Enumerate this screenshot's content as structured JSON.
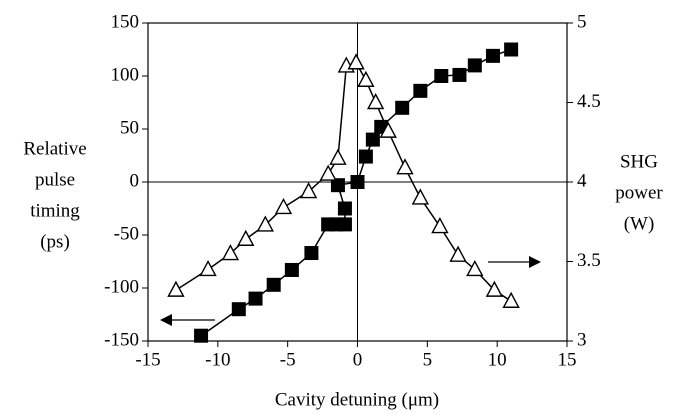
{
  "chart_data": {
    "type": "line",
    "x_label": "Cavity detuning (μm)",
    "y_label": [
      "Relative",
      "pulse",
      "timing",
      "(ps)"
    ],
    "y2_label": [
      "SHG",
      "power",
      "(W)"
    ],
    "xlim": [
      -15,
      15
    ],
    "xticks": [
      -15,
      -10,
      -5,
      0,
      5,
      10,
      15
    ],
    "ylim": [
      -150,
      150
    ],
    "yticks": [
      -150,
      -100,
      -50,
      0,
      50,
      100,
      150
    ],
    "y2lim": [
      3,
      5
    ],
    "y2ticks": [
      3,
      3.5,
      4,
      4.5,
      5
    ],
    "zero_lines": true,
    "series": [
      {
        "color": "#000000",
        "marker": "square",
        "axis": "y",
        "x": [
          -11.2,
          -8.5,
          -7.3,
          -6.0,
          -4.7,
          -3.3,
          -2.1,
          -1.5,
          -0.9,
          -0.9,
          -1.4,
          0,
          0.6,
          1.1,
          1.7,
          3.2,
          4.5,
          6.0,
          7.3,
          8.4,
          9.7,
          11.0
        ],
        "values": [
          -145,
          -120,
          -110,
          -97,
          -83,
          -67,
          -40,
          -40,
          -40,
          -25,
          -3,
          0,
          24,
          40,
          52,
          70,
          86,
          100,
          101,
          110,
          119,
          125
        ]
      },
      {
        "color": "#000000",
        "marker": "triangle",
        "axis": "y2",
        "x": [
          -13.0,
          -10.7,
          -9.1,
          -8.0,
          -6.6,
          -5.3,
          -3.5,
          -2.1,
          -1.4,
          -0.8,
          -0.1,
          0.6,
          1.3,
          2.2,
          3.4,
          4.5,
          5.9,
          7.2,
          8.4,
          9.8,
          11.0
        ],
        "values": [
          3.32,
          3.45,
          3.55,
          3.64,
          3.73,
          3.84,
          3.94,
          4.05,
          4.15,
          4.73,
          4.75,
          4.64,
          4.5,
          4.32,
          4.09,
          3.9,
          3.72,
          3.54,
          3.45,
          3.32,
          3.25
        ]
      }
    ]
  }
}
